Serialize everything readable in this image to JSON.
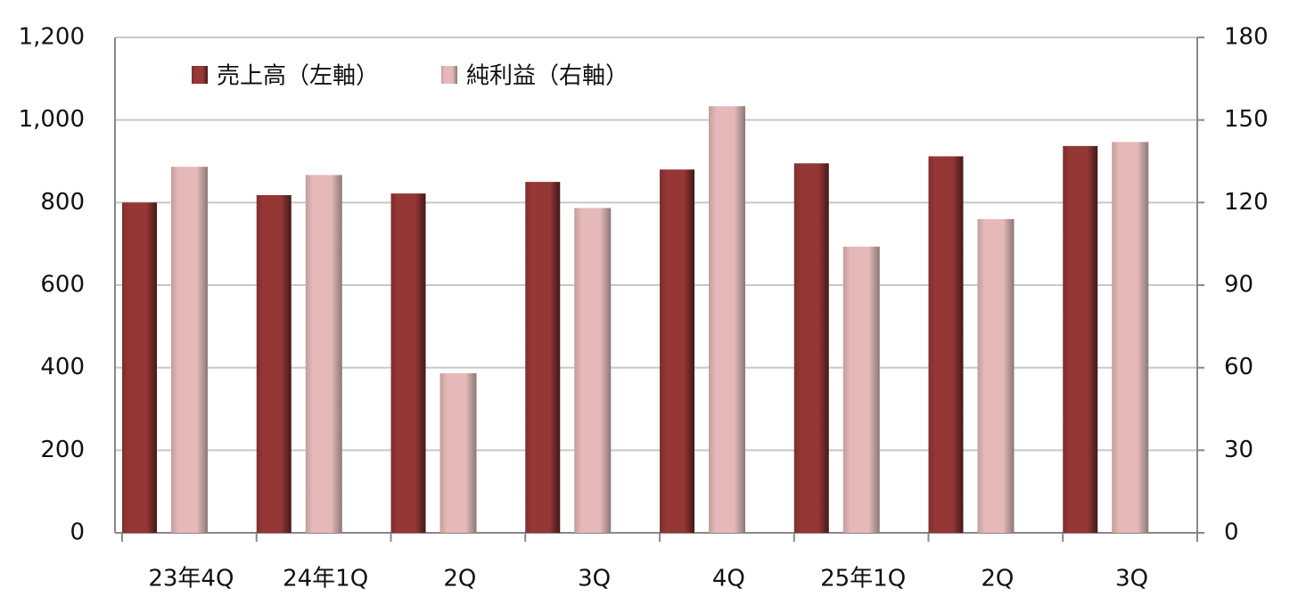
{
  "chart_data": {
    "type": "bar",
    "categories": [
      "23年4Q",
      "24年1Q",
      "2Q",
      "3Q",
      "4Q",
      "25年1Q",
      "2Q",
      "3Q"
    ],
    "series": [
      {
        "name": "売上高（左軸）",
        "color": "#953735",
        "values": [
          800,
          818,
          822,
          850,
          880,
          895,
          912,
          937
        ]
      },
      {
        "name": "純利益（右軸）",
        "color": "#e6b9b8",
        "axis": "y2",
        "values": [
          133,
          130,
          58,
          118,
          155,
          104,
          114,
          142
        ]
      }
    ],
    "ylim": [
      0,
      1200
    ],
    "yticks": [
      0,
      200,
      400,
      600,
      800,
      {
        "value": 1000,
        "label": "1,000"
      },
      {
        "value": 1200,
        "label": "1,200"
      }
    ],
    "y2lim": [
      0,
      180
    ],
    "y2ticks": [
      0,
      30,
      60,
      90,
      120,
      150,
      180
    ],
    "grid": true,
    "legend": "top-left"
  }
}
